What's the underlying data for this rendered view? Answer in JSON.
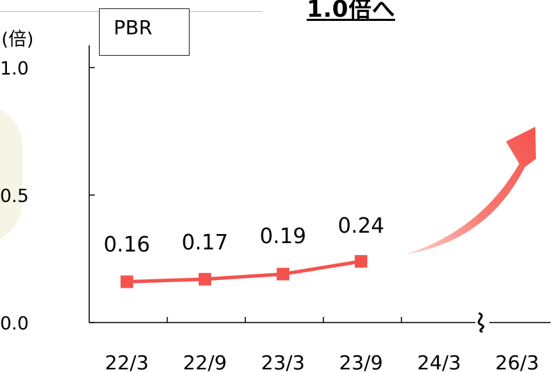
{
  "headline": "1.0倍へ",
  "legend_label": "PBR",
  "y_unit": "(倍)",
  "colors": {
    "series": "#f5524e",
    "axis": "#000000"
  },
  "chart_data": {
    "type": "line",
    "categories": [
      "22/3",
      "22/9",
      "23/3",
      "23/9",
      "24/3",
      "26/3"
    ],
    "series": [
      {
        "name": "PBR",
        "values": [
          0.16,
          0.17,
          0.19,
          0.24,
          null,
          null
        ]
      }
    ],
    "data_labels": [
      "0.16",
      "0.17",
      "0.19",
      "0.24"
    ],
    "yticks": [
      "0.0",
      "0.5",
      "1.0"
    ],
    "ylim": [
      0,
      1.0
    ],
    "axis_break": "between 24/3 and 26/3",
    "grid": false,
    "annotation": "upward arrow toward 1.0"
  }
}
